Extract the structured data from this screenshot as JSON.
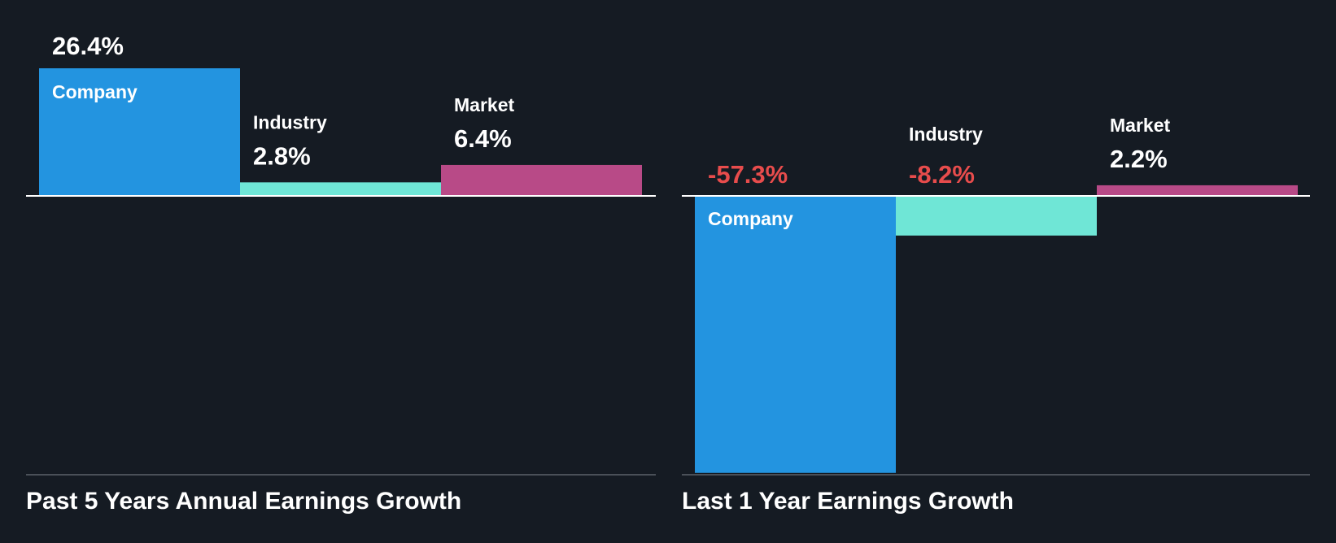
{
  "colors": {
    "background": "#151b23",
    "company": "#2394e0",
    "industry": "#6fe6d6",
    "market": "#b84a87",
    "label_positive": "#ffffff",
    "label_negative": "#e84c4c",
    "baseline": "#ffffff",
    "footer_line": "#4a5058"
  },
  "chart_data": [
    {
      "type": "bar",
      "title": "Past 5 Years Annual Earnings Growth",
      "categories": [
        "Company",
        "Industry",
        "Market"
      ],
      "values": [
        26.4,
        2.8,
        6.4
      ],
      "value_labels": [
        "26.4%",
        "2.8%",
        "6.4%"
      ],
      "unit": "%",
      "ylim": [
        -57.3,
        26.4
      ],
      "grid": false,
      "legend": "none"
    },
    {
      "type": "bar",
      "title": "Last 1 Year Earnings Growth",
      "categories": [
        "Company",
        "Industry",
        "Market"
      ],
      "values": [
        -57.3,
        -8.2,
        2.2
      ],
      "value_labels": [
        "-57.3%",
        "-8.2%",
        "2.2%"
      ],
      "unit": "%",
      "ylim": [
        -57.3,
        26.4
      ],
      "grid": false,
      "legend": "none"
    }
  ]
}
